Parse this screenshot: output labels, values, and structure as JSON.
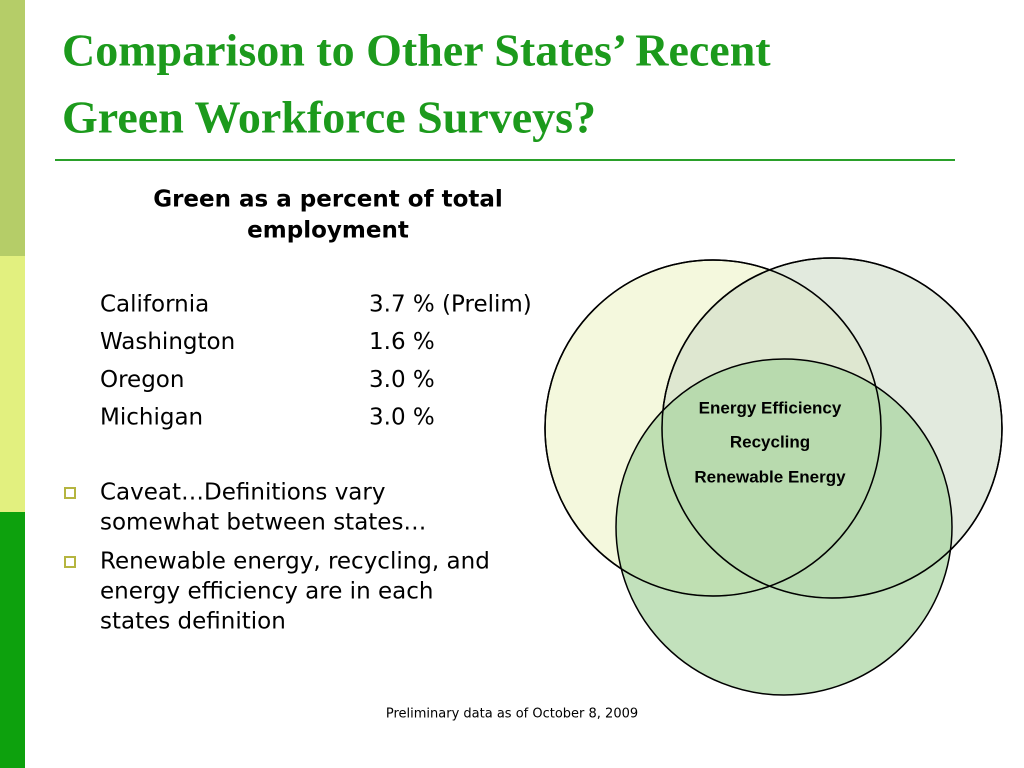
{
  "title": {
    "line1": "Comparison to Other States’ Recent",
    "line2": "Green Workforce Surveys?"
  },
  "subtitle": {
    "line1": "Green as a percent of total",
    "line2": "employment"
  },
  "table": {
    "rows": [
      [
        "California",
        "3.7 % (Prelim)"
      ],
      [
        "Washington",
        "1.6 %"
      ],
      [
        "Oregon",
        "3.0 %"
      ],
      [
        "Michigan",
        "3.0 %"
      ]
    ]
  },
  "bullets": [
    {
      "lines": [
        "Caveat…Definitions vary",
        "somewhat between states…"
      ]
    },
    {
      "lines": [
        "Renewable energy, recycling, and",
        "energy efficiency are in each",
        "states definition"
      ]
    }
  ],
  "venn": {
    "labels": [
      "Energy Efficiency",
      "Recycling",
      "Renewable Energy"
    ]
  },
  "footnote": "Preliminary data as of October 8, 2009"
}
